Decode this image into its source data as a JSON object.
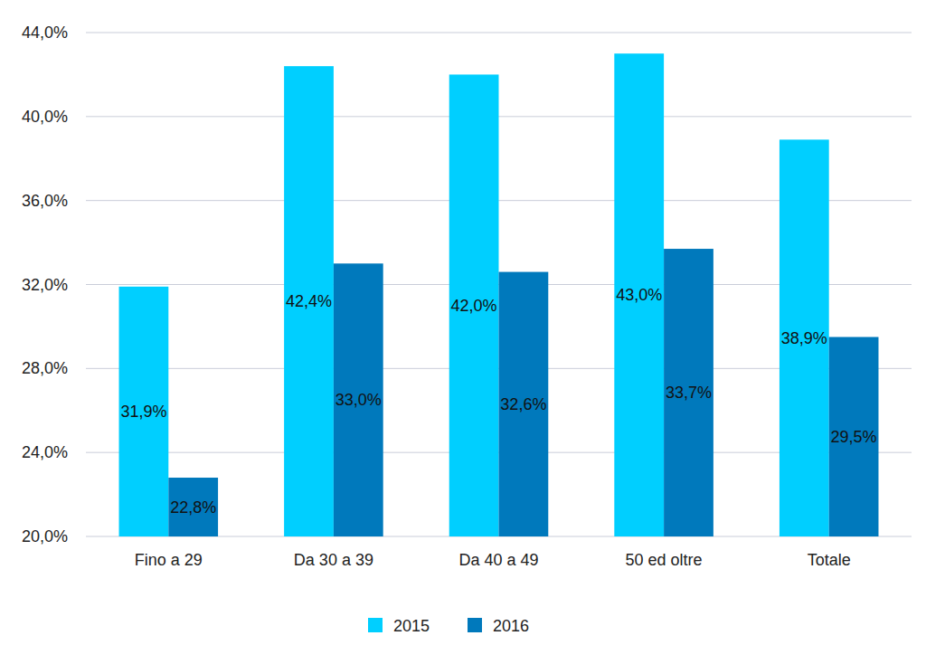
{
  "chart_data": {
    "type": "bar",
    "categories": [
      "Fino a 29",
      "Da 30 a 39",
      "Da 40 a 49",
      "50 ed oltre",
      "Totale"
    ],
    "series": [
      {
        "name": "2015",
        "color": "#00cfff",
        "values": [
          31.9,
          42.4,
          42.0,
          43.0,
          38.9
        ],
        "value_labels": [
          "31,9%",
          "42,4%",
          "42,0%",
          "43,0%",
          "38,9%"
        ]
      },
      {
        "name": "2016",
        "color": "#0079bc",
        "values": [
          22.8,
          33.0,
          32.6,
          33.7,
          29.5
        ],
        "value_labels": [
          "22,8%",
          "33,0%",
          "32,6%",
          "33,7%",
          "29,5%"
        ]
      }
    ],
    "ylim": [
      20,
      44
    ],
    "yticks": [
      {
        "value": 20,
        "label": "20,0%"
      },
      {
        "value": 24,
        "label": "24,0%"
      },
      {
        "value": 28,
        "label": "28,0%"
      },
      {
        "value": 32,
        "label": "32,0%"
      },
      {
        "value": 36,
        "label": "36,0%"
      },
      {
        "value": 40,
        "label": "40,0%"
      },
      {
        "value": 44,
        "label": "44,0%"
      }
    ],
    "grid": true,
    "legend": "bottom",
    "data_labels": true
  }
}
